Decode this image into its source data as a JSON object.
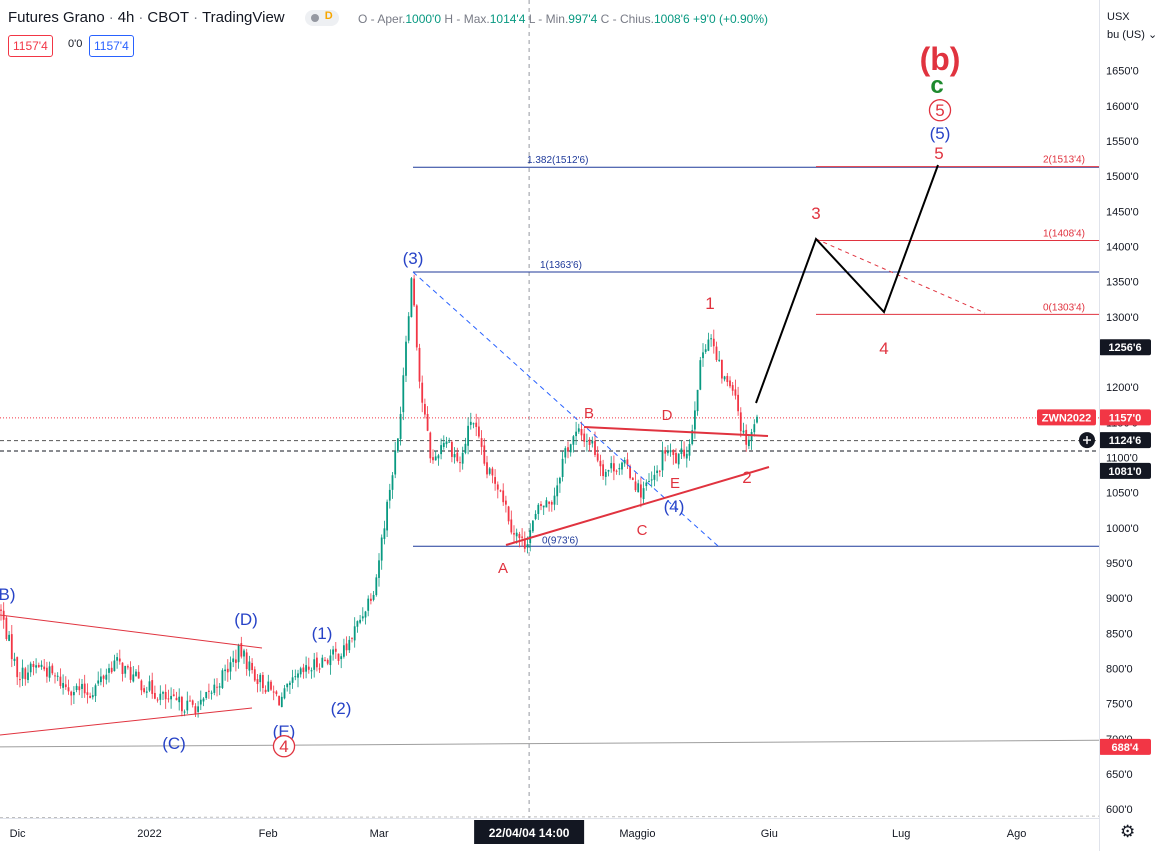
{
  "header": {
    "title": "Futures Grano",
    "interval": "4h",
    "exchange": "CBOT",
    "platform": "TradingView",
    "badge": "D",
    "ohlc": {
      "open_label": "O - Aper.",
      "open": "1000'0",
      "high_label": "H - Max.",
      "high": "1014'4",
      "low_label": "L - Min.",
      "low": "997'4",
      "close_label": "C - Chius.",
      "close": "1008'6",
      "change": "+9'0 (+0.90%)"
    },
    "price_red": "1157'4",
    "spread": "0'0",
    "price_blue": "1157'4"
  },
  "axis_controls": {
    "currency": "USX",
    "unit": "bu (US)"
  },
  "colors": {
    "up": "#089981",
    "down": "#f23645",
    "wave_red": "#e0333f",
    "wave_blue": "#2743c7",
    "fib_blue": "#1f3a9a"
  },
  "chart_data": {
    "type": "candlestick",
    "y_ticks": [
      "1650'0",
      "1600'0",
      "1550'0",
      "1500'0",
      "1450'0",
      "1400'0",
      "1350'0",
      "1300'0",
      "1200'0",
      "1150'0",
      "1100'0",
      "1050'0",
      "1000'0",
      "950'0",
      "900'0",
      "850'0",
      "800'0",
      "750'0",
      "700'0",
      "650'0",
      "600'0"
    ],
    "y_values": [
      1650,
      1600,
      1550,
      1500,
      1450,
      1400,
      1350,
      1300,
      1200,
      1150,
      1100,
      1050,
      1000,
      950,
      900,
      850,
      800,
      750,
      700,
      650,
      600
    ],
    "x_ticks": [
      {
        "label": "Dic",
        "pos": 0.016
      },
      {
        "label": "2022",
        "pos": 0.136
      },
      {
        "label": "Feb",
        "pos": 0.244
      },
      {
        "label": "Mar",
        "pos": 0.345
      },
      {
        "label": "Maggio",
        "pos": 0.58
      },
      {
        "label": "Giu",
        "pos": 0.7
      },
      {
        "label": "Lug",
        "pos": 0.82
      },
      {
        "label": "Ago",
        "pos": 0.925
      }
    ],
    "crosshair_label": "22/04/04   14:00",
    "crosshair_pos": 0.481,
    "price_labels": [
      {
        "text": "1256'6",
        "value": 1256.75,
        "style": "dark"
      },
      {
        "text": "ZWN2022",
        "value": 1157,
        "style": "red"
      },
      {
        "text": "1157'0",
        "value": 1157,
        "style": "red"
      },
      {
        "text": "1124'6",
        "value": 1124.75,
        "style": "dark"
      },
      {
        "text": "1081'0",
        "value": 1081,
        "style": "dark"
      },
      {
        "text": "688'4",
        "value": 688.5,
        "style": "red"
      }
    ],
    "fib_levels": [
      {
        "text": "1.382(1512'6)",
        "value": 1512.75,
        "color": "blue"
      },
      {
        "text": "1(1363'6)",
        "value": 1363.75,
        "color": "blue"
      },
      {
        "text": "0(973'6)",
        "value": 973.75,
        "color": "blue"
      },
      {
        "text": "2(1513'4)",
        "value": 1513.5,
        "color": "red"
      },
      {
        "text": "1(1408'4)",
        "value": 1408.5,
        "color": "red"
      },
      {
        "text": "0(1303'4)",
        "value": 1303.5,
        "color": "red"
      }
    ],
    "wave_labels": [
      {
        "text": "(b)",
        "color": "red",
        "size": "xl"
      },
      {
        "text": "c",
        "color": "green",
        "size": "l"
      },
      {
        "text": "5",
        "color": "red",
        "size": "m",
        "circled": true
      },
      {
        "text": "(5)",
        "color": "blue",
        "size": "m"
      },
      {
        "text": "5",
        "color": "red",
        "size": "m"
      },
      {
        "text": "3",
        "color": "red",
        "size": "m"
      },
      {
        "text": "4",
        "color": "red",
        "size": "m"
      },
      {
        "text": "1",
        "color": "red",
        "size": "m"
      },
      {
        "text": "2",
        "color": "red",
        "size": "m"
      },
      {
        "text": "(3)",
        "color": "blue",
        "size": "m"
      },
      {
        "text": "B",
        "color": "red",
        "size": "s"
      },
      {
        "text": "D",
        "color": "red",
        "size": "s"
      },
      {
        "text": "E",
        "color": "red",
        "size": "s"
      },
      {
        "text": "(4)",
        "color": "blue",
        "size": "m"
      },
      {
        "text": "C",
        "color": "red",
        "size": "s"
      },
      {
        "text": "A",
        "color": "red",
        "size": "s"
      },
      {
        "text": "B)",
        "color": "blue",
        "size": "m"
      },
      {
        "text": "(D)",
        "color": "blue",
        "size": "m"
      },
      {
        "text": "(1)",
        "color": "blue",
        "size": "m"
      },
      {
        "text": "(2)",
        "color": "blue",
        "size": "m"
      },
      {
        "text": "(C)",
        "color": "blue",
        "size": "m"
      },
      {
        "text": "(E)",
        "color": "blue",
        "size": "m"
      },
      {
        "text": "4",
        "color": "red",
        "size": "m",
        "circled": true
      }
    ]
  }
}
